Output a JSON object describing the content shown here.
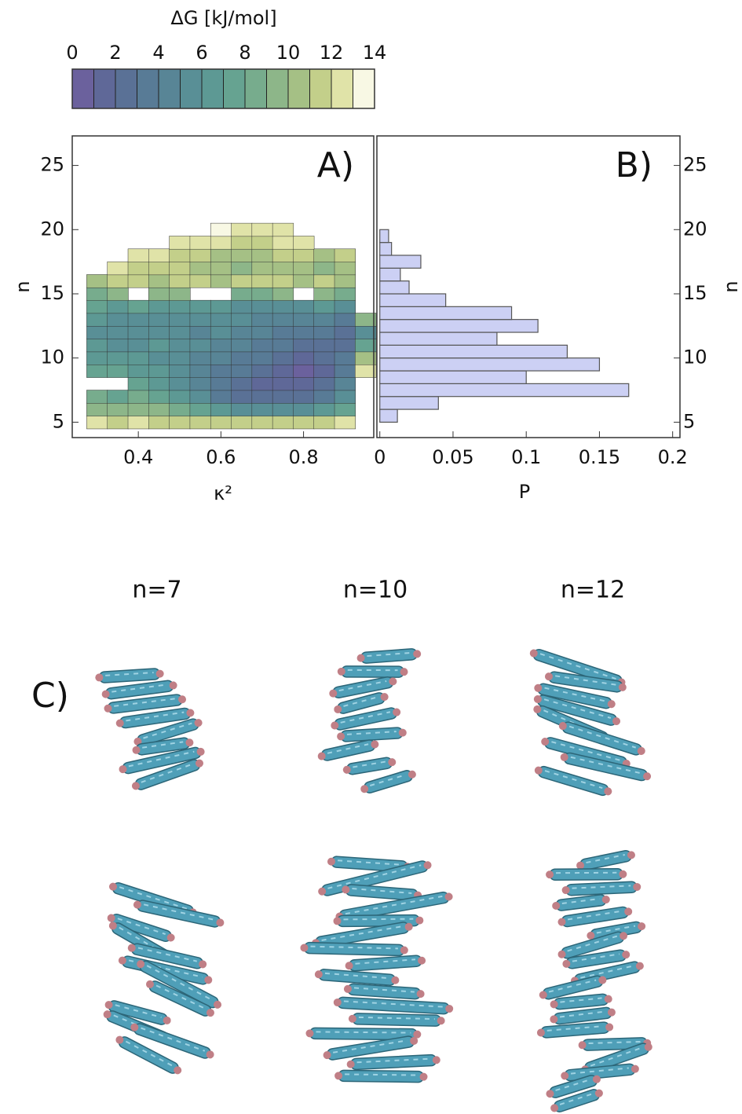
{
  "chart_data": [
    {
      "type": "colorbar",
      "title": "ΔG [kJ/mol]",
      "xlim": [
        0,
        14
      ],
      "xticks": [
        0,
        2,
        4,
        6,
        8,
        10,
        12,
        14
      ],
      "colors": [
        "#6b619d",
        "#5f6898",
        "#5a7196",
        "#587b96",
        "#588596",
        "#598f96",
        "#5d9994",
        "#66a391",
        "#77ac8d",
        "#8db689",
        "#a5c085",
        "#c3cf8a",
        "#e0e3a8",
        "#f8f8e4"
      ]
    },
    {
      "type": "contour",
      "label": "A)",
      "xlabel": "κ²",
      "ylabel": "n",
      "xlim": [
        0.24,
        0.97
      ],
      "xticks": [
        0.4,
        0.6,
        0.8
      ],
      "ylim": [
        3.8,
        27.3
      ],
      "yticks": [
        5,
        10,
        15,
        20,
        25
      ],
      "x": [
        0.3,
        0.35,
        0.4,
        0.45,
        0.5,
        0.55,
        0.6,
        0.65,
        0.7,
        0.75,
        0.8,
        0.85,
        0.9,
        0.95
      ],
      "y": [
        5,
        6,
        7,
        8,
        9,
        10,
        11,
        12,
        13,
        14,
        15,
        16,
        17,
        18,
        19,
        20
      ],
      "z": [
        [
          12,
          11,
          12,
          11,
          11,
          11,
          11,
          11,
          11,
          11,
          11,
          11,
          12,
          null
        ],
        [
          9,
          9,
          9,
          9,
          8,
          7,
          6,
          5,
          5,
          5,
          5,
          6,
          7,
          null
        ],
        [
          8,
          7,
          8,
          7,
          6,
          5,
          3,
          2,
          2,
          2,
          2,
          3,
          5,
          null
        ],
        [
          null,
          null,
          7,
          6,
          5,
          4,
          3,
          2,
          1,
          1,
          1,
          2,
          4,
          null
        ],
        [
          7,
          7,
          6,
          6,
          5,
          4,
          3,
          3,
          2,
          1,
          0,
          1,
          3,
          12
        ],
        [
          6,
          6,
          6,
          5,
          5,
          4,
          4,
          3,
          3,
          2,
          1,
          2,
          3,
          10
        ],
        [
          6,
          5,
          5,
          6,
          5,
          5,
          4,
          4,
          3,
          3,
          2,
          2,
          2,
          7
        ],
        [
          5,
          5,
          5,
          5,
          5,
          4,
          5,
          4,
          4,
          3,
          3,
          3,
          2,
          5
        ],
        [
          6,
          5,
          5,
          5,
          5,
          5,
          5,
          5,
          4,
          4,
          4,
          4,
          3,
          9
        ],
        [
          7,
          6,
          7,
          6,
          6,
          6,
          6,
          5,
          5,
          5,
          5,
          6,
          5,
          null
        ],
        [
          8,
          9,
          null,
          9,
          9,
          null,
          null,
          8,
          8,
          9,
          null,
          9,
          8,
          null
        ],
        [
          10,
          11,
          11,
          10,
          11,
          11,
          10,
          11,
          11,
          11,
          10,
          11,
          10,
          null
        ],
        [
          null,
          12,
          11,
          11,
          11,
          10,
          10,
          9,
          10,
          10,
          10,
          9,
          10,
          null
        ],
        [
          null,
          null,
          12,
          12,
          11,
          11,
          10,
          10,
          10,
          11,
          11,
          10,
          11,
          null
        ],
        [
          null,
          null,
          null,
          null,
          12,
          12,
          12,
          11,
          11,
          12,
          12,
          null,
          null,
          null
        ],
        [
          null,
          null,
          null,
          null,
          null,
          null,
          13,
          12,
          12,
          12,
          null,
          null,
          null,
          null
        ]
      ]
    },
    {
      "type": "histogram",
      "orientation": "horizontal",
      "label": "B)",
      "xlabel": "P",
      "ylabel": "n",
      "color": "#ccd0f4",
      "xlim": [
        -0.002,
        0.205
      ],
      "xticks": [
        0,
        0.05,
        0.1,
        0.15,
        0.2
      ],
      "ylim": [
        3.8,
        27.3
      ],
      "yticks": [
        5,
        10,
        15,
        20,
        25
      ],
      "bins": [
        5,
        6,
        7,
        8,
        9,
        10,
        11,
        12,
        13,
        14,
        15,
        16,
        17,
        18,
        19,
        20
      ],
      "values": [
        0.012,
        0.04,
        0.17,
        0.1,
        0.15,
        0.128,
        0.08,
        0.108,
        0.09,
        0.045,
        0.02,
        0.014,
        0.028,
        0.008,
        0.006
      ]
    }
  ],
  "panel_c": {
    "label": "C)",
    "titles": [
      "n=7",
      "n=10",
      "n=12"
    ]
  }
}
